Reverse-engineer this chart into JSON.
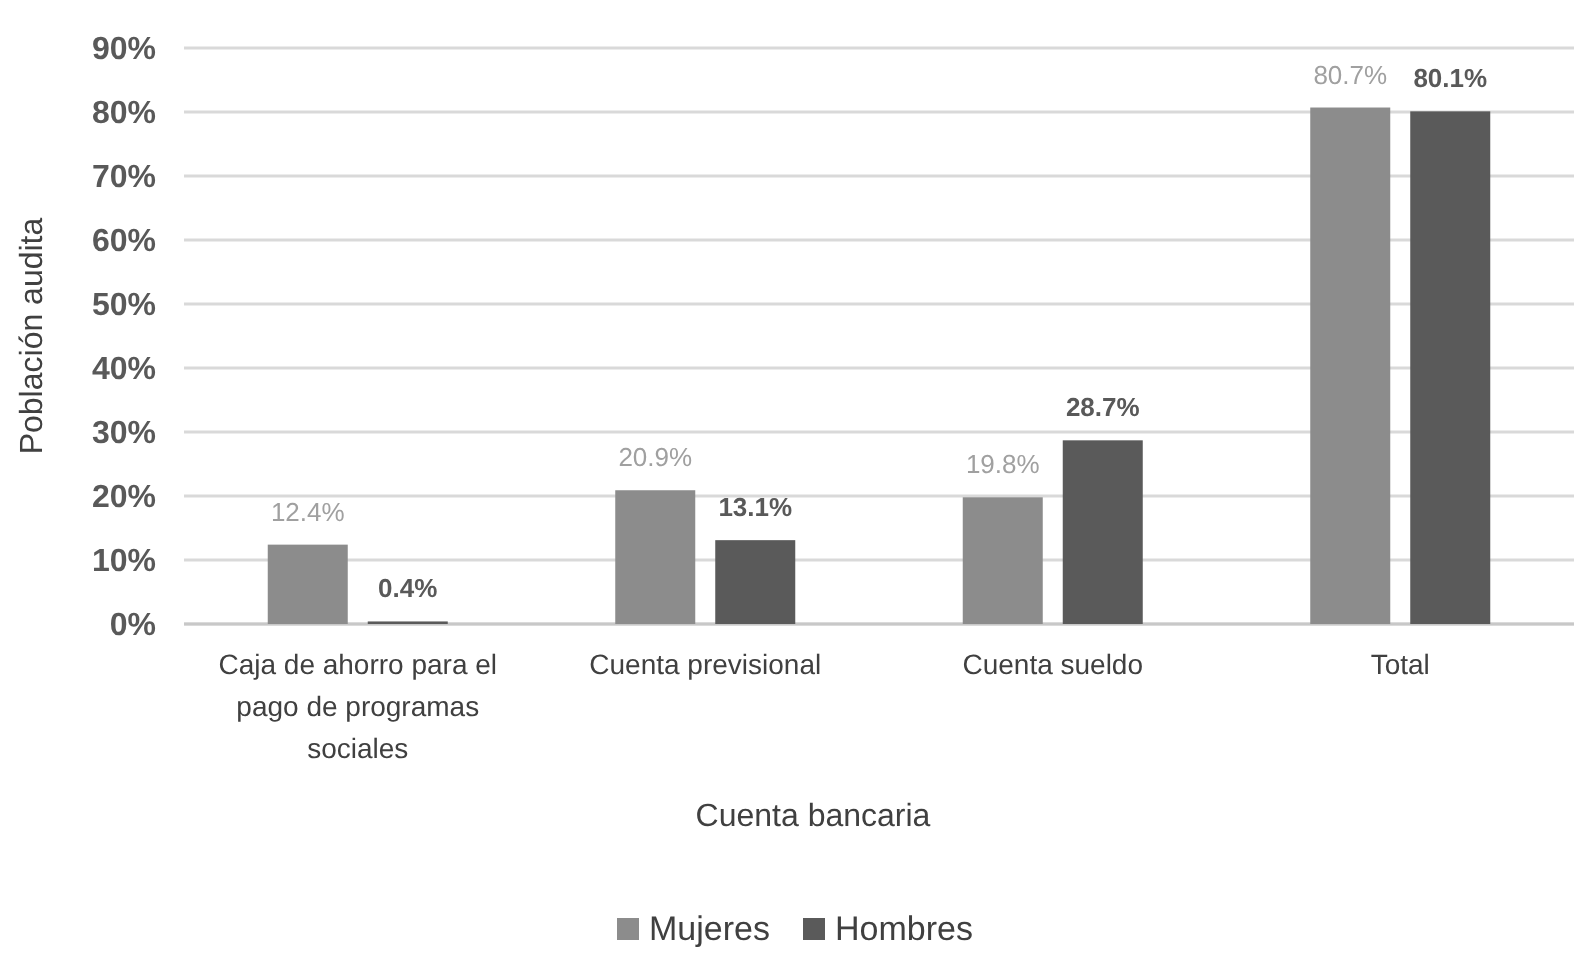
{
  "chart_data": {
    "type": "bar",
    "xlabel": "Cuenta bancaria",
    "ylabel": "Población audita",
    "categories": [
      "Caja de ahorro para el pago de programas sociales",
      "Cuenta previsional",
      "Cuenta sueldo",
      "Total"
    ],
    "series": [
      {
        "name": "Mujeres",
        "color": "#8c8c8c",
        "values": [
          12.4,
          20.9,
          19.8,
          80.7
        ],
        "value_labels": [
          "12.4%",
          "20.9%",
          "19.8%",
          "80.7%"
        ]
      },
      {
        "name": "Hombres",
        "color": "#5a5a5a",
        "values": [
          0.4,
          13.1,
          28.7,
          80.1
        ],
        "value_labels": [
          "0.4%",
          "13.1%",
          "28.7%",
          "80.1%"
        ]
      }
    ],
    "ylim": [
      0,
      90
    ],
    "yticks": [
      {
        "value": 0,
        "label": "0%"
      },
      {
        "value": 10,
        "label": "10%"
      },
      {
        "value": 20,
        "label": "20%"
      },
      {
        "value": 30,
        "label": "30%"
      },
      {
        "value": 40,
        "label": "40%"
      },
      {
        "value": 50,
        "label": "50%"
      },
      {
        "value": 60,
        "label": "60%"
      },
      {
        "value": 70,
        "label": "70%"
      },
      {
        "value": 80,
        "label": "80%"
      },
      {
        "value": 90,
        "label": "90%"
      }
    ],
    "grid": "y",
    "legend": "bottom"
  }
}
